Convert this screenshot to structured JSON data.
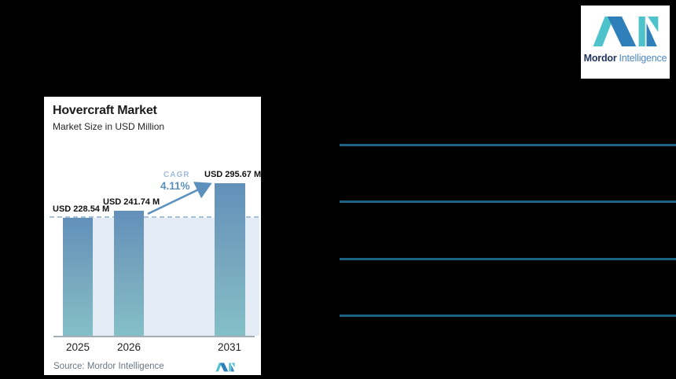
{
  "logo": {
    "brand_bold": "Mordor",
    "brand_light": "Intelligence"
  },
  "card": {
    "title": "Hovercraft Market",
    "subtitle": "Market Size in USD Million",
    "cagr_label": "CAGR",
    "cagr_value": "4.11%",
    "source": "Source: Mordor Intelligence"
  },
  "chart_data": {
    "type": "bar",
    "title": "Hovercraft Market",
    "subtitle": "Market Size in USD Million",
    "categories": [
      "2025",
      "2026",
      "2031"
    ],
    "values": [
      228.54,
      241.74,
      295.67
    ],
    "value_labels": [
      "USD 228.54 M",
      "USD 241.74 M",
      "USD 295.67 M"
    ],
    "unit": "USD Million",
    "cagr_percent": 4.11,
    "baseline_reference": 228.54,
    "legend": false,
    "grid": false,
    "source": "Mordor Intelligence"
  },
  "colors": {
    "background": "#000000",
    "card_background": "#ffffff",
    "bar_gradient_top": "#6290ba",
    "bar_gradient_bottom": "#84bfc7",
    "plot_background": "#e3ecf4",
    "dashed_line": "#a9c4d9",
    "cagr_accent": "#5d91bd",
    "separator_line": "#1b6285",
    "brand_teal": "#4ec3cb",
    "brand_blue": "#2f7fba"
  }
}
